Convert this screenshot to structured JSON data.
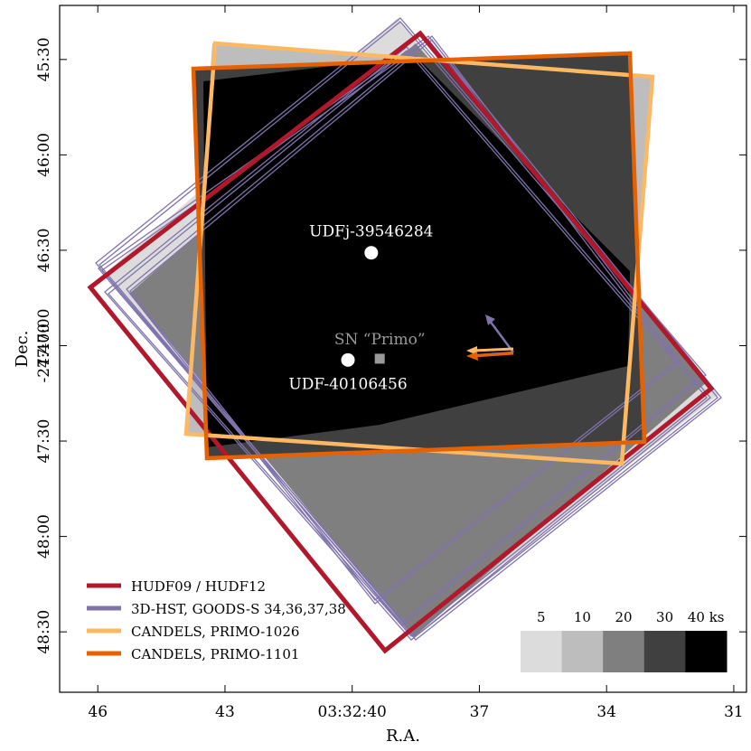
{
  "chart_data": {
    "type": "footprint-map",
    "xlabel": "R.A.",
    "ylabel_line1": "Dec.",
    "ylabel_line2": "-27:47:00",
    "xticks": [
      {
        "label": "46",
        "ra_s": 46
      },
      {
        "label": "43",
        "ra_s": 43
      },
      {
        "label": "03:32:40",
        "ra_s": 40
      },
      {
        "label": "37",
        "ra_s": 37
      },
      {
        "label": "34",
        "ra_s": 34
      },
      {
        "label": "31",
        "ra_s": 31
      }
    ],
    "yticks": [
      {
        "label": "45:30",
        "dec_s": 30
      },
      {
        "label": "46:00",
        "dec_s": 60
      },
      {
        "label": "46:30",
        "dec_s": 90
      },
      {
        "label": "47:00",
        "dec_s": 120
      },
      {
        "label": "47:30",
        "dec_s": 150
      },
      {
        "label": "48:00",
        "dec_s": 180
      },
      {
        "label": "48:30",
        "dec_s": 210
      }
    ],
    "xlim_ra_s": [
      46.9,
      30.7
    ],
    "ylim_dec_s": [
      13,
      229
    ],
    "sources": [
      {
        "label": "UDFj-39546284",
        "ra_s": 39.55,
        "dec_s": 90.8,
        "marker": "circle",
        "color": "#ffffff"
      },
      {
        "label": "UDF-40106456",
        "ra_s": 40.1,
        "dec_s": 124.5,
        "marker": "circle",
        "color": "#ffffff"
      },
      {
        "label": "SN “Primo”",
        "ra_s": 39.35,
        "dec_s": 124.1,
        "marker": "square",
        "color": "#999999"
      }
    ],
    "legend": {
      "position": "lower-left",
      "entries": [
        {
          "label": "HUDF09 / HUDF12",
          "color": "#b2182b"
        },
        {
          "label": "3D-HST, GOODS-S 34,36,37,38",
          "color": "#8073ac"
        },
        {
          "label": "CANDELS, PRIMO-1026",
          "color": "#fdb863"
        },
        {
          "label": "CANDELS, PRIMO-1101",
          "color": "#e66101"
        }
      ]
    },
    "colorbar": {
      "position": "lower-right",
      "levels": [
        {
          "label": "5",
          "color": "#dcdcdc"
        },
        {
          "label": "10",
          "color": "#bdbdbd"
        },
        {
          "label": "20",
          "color": "#7f7f7f"
        },
        {
          "label": "30",
          "color": "#404040"
        },
        {
          "label": "40 ks",
          "color": "#000000"
        }
      ]
    },
    "footprint_colors": {
      "hudf": "#b2182b",
      "hst3d": "#8073ac",
      "primo1026": "#fdb863",
      "primo1101": "#e66101"
    }
  }
}
